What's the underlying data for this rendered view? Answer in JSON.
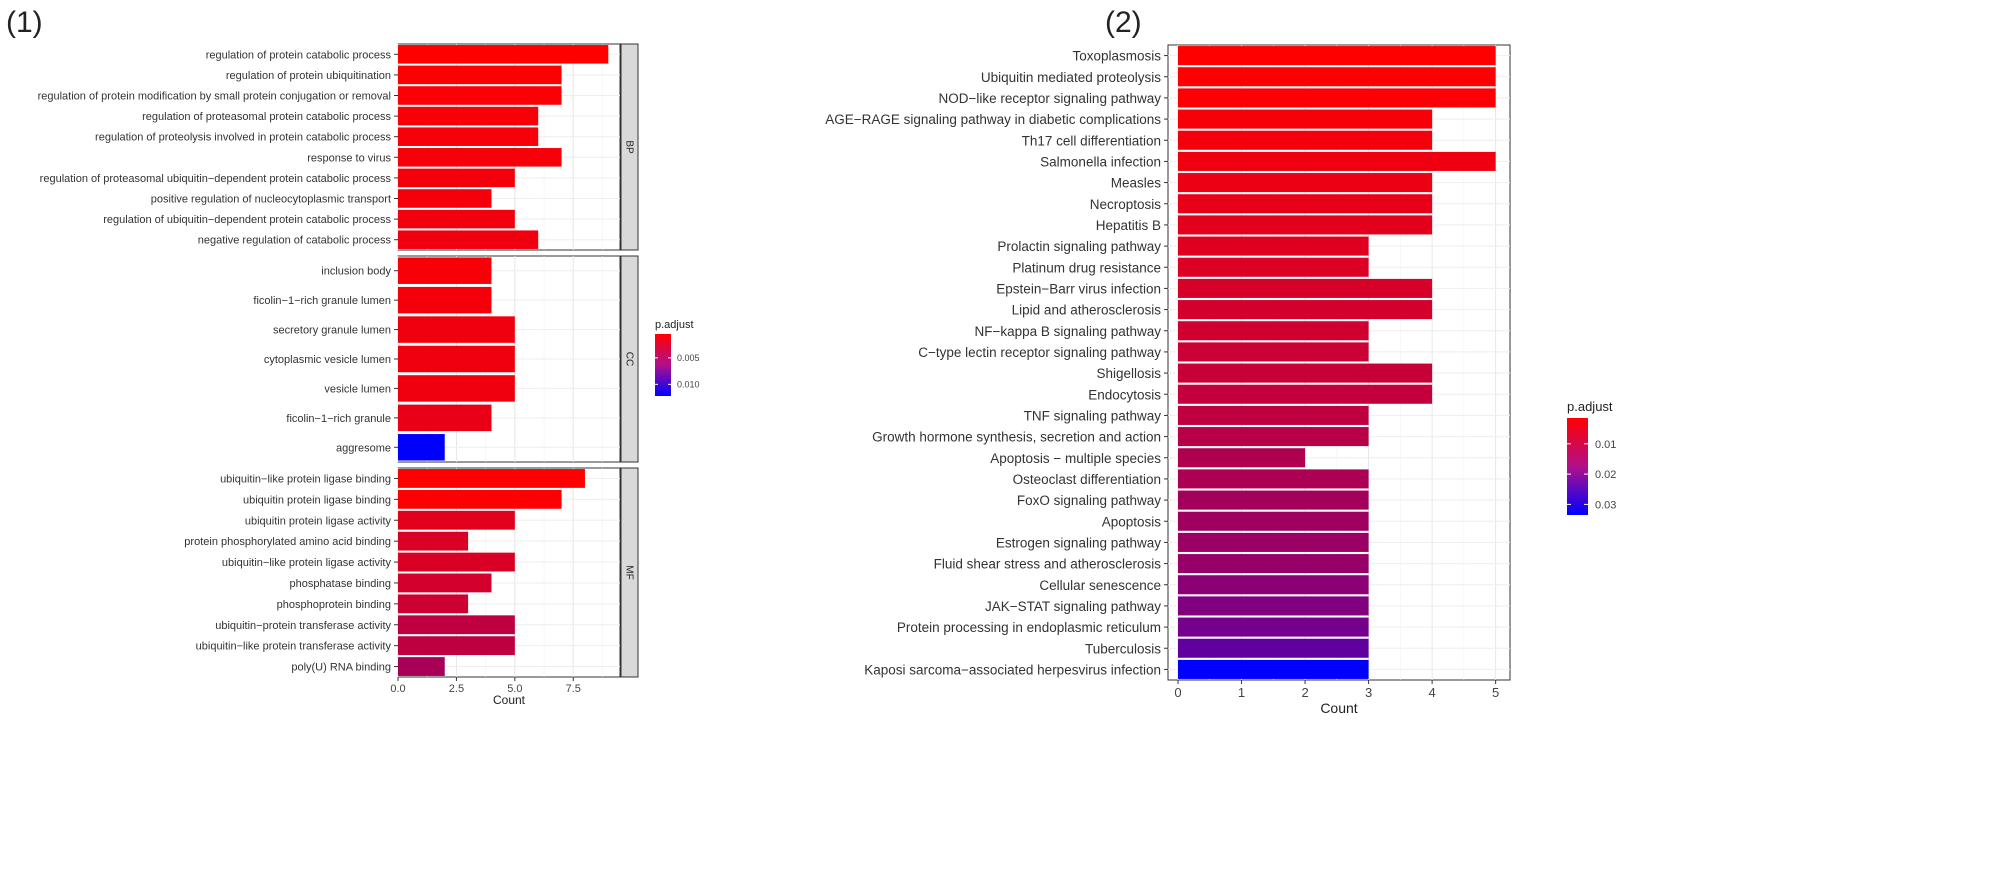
{
  "chart_data": [
    {
      "type": "bar",
      "orientation": "horizontal",
      "panel_label": "(1)",
      "xlabel": "Count",
      "xlim": [
        0,
        9.5
      ],
      "xticks": [
        0,
        2.5,
        5,
        7.5
      ],
      "xtick_labels": [
        "0.0",
        "2.5",
        "5.0",
        "7.5"
      ],
      "color_legend": {
        "title": "p.adjust",
        "ticks": [
          0.005,
          0.01
        ],
        "tick_labels": [
          "0.005",
          "0.010"
        ],
        "range": [
          0.0005,
          0.0122
        ],
        "low_color": "#ff0000",
        "high_color": "#0000ff"
      },
      "facets": [
        {
          "strip": "BP",
          "categories": [
            "regulation of protein catabolic process",
            "regulation of protein ubiquitination",
            "regulation of protein modification by small protein conjugation or removal",
            "regulation of proteasomal protein catabolic process",
            "regulation of proteolysis involved in protein catabolic process",
            "response to virus",
            "regulation of proteasomal ubiquitin−dependent protein catabolic process",
            "positive regulation of nucleocytoplasmic transport",
            "regulation of ubiquitin−dependent protein catabolic process",
            "negative regulation of catabolic process"
          ],
          "values": [
            9,
            7,
            7,
            6,
            6,
            7,
            5,
            4,
            5,
            6
          ],
          "p_adjust": [
            0.0005,
            0.0006,
            0.0007,
            0.0008,
            0.0009,
            0.0009,
            0.001,
            0.001,
            0.0011,
            0.0012
          ]
        },
        {
          "strip": "CC",
          "categories": [
            "inclusion body",
            "ficolin−1−rich granule lumen",
            "secretory granule lumen",
            "cytoplasmic vesicle lumen",
            "vesicle lumen",
            "ficolin−1−rich granule",
            "aggresome"
          ],
          "values": [
            4,
            4,
            5,
            5,
            5,
            4,
            2
          ],
          "p_adjust": [
            0.0008,
            0.001,
            0.0012,
            0.0012,
            0.0012,
            0.0015,
            0.0122
          ]
        },
        {
          "strip": "MF",
          "categories": [
            "ubiquitin−like protein ligase binding",
            "ubiquitin protein ligase binding",
            "ubiquitin protein ligase activity",
            "protein phosphorylated amino acid binding",
            "ubiquitin−like protein ligase activity",
            "phosphatase binding",
            "phosphoprotein binding",
            "ubiquitin−protein transferase activity",
            "ubiquitin−like protein transferase activity",
            "poly(U) RNA binding"
          ],
          "values": [
            8,
            7,
            5,
            3,
            5,
            4,
            3,
            5,
            5,
            2
          ],
          "p_adjust": [
            0.0005,
            0.0006,
            0.0018,
            0.0022,
            0.0022,
            0.0025,
            0.0028,
            0.0035,
            0.0035,
            0.0045
          ]
        }
      ]
    },
    {
      "type": "bar",
      "orientation": "horizontal",
      "panel_label": "(2)",
      "xlabel": "Count",
      "xlim": [
        0,
        5.1
      ],
      "xticks": [
        0,
        1,
        2,
        3,
        4,
        5
      ],
      "xtick_labels": [
        "0",
        "1",
        "2",
        "3",
        "4",
        "5"
      ],
      "color_legend": {
        "title": "p.adjust",
        "ticks": [
          0.01,
          0.02,
          0.03
        ],
        "tick_labels": [
          "0.01",
          "0.02",
          "0.03"
        ],
        "range": [
          0.0015,
          0.0335
        ],
        "low_color": "#ff0000",
        "high_color": "#0000ff"
      },
      "categories": [
        "Toxoplasmosis",
        "Ubiquitin mediated proteolysis",
        "NOD−like receptor signaling pathway",
        "AGE−RAGE signaling pathway in diabetic complications",
        "Th17 cell differentiation",
        "Salmonella infection",
        "Measles",
        "Necroptosis",
        "Hepatitis B",
        "Prolactin signaling pathway",
        "Platinum drug resistance",
        "Epstein−Barr virus infection",
        "Lipid and atherosclerosis",
        "NF−kappa B signaling pathway",
        "C−type lectin receptor signaling pathway",
        "Shigellosis",
        "Endocytosis",
        "TNF signaling pathway",
        "Growth hormone synthesis, secretion and action",
        "Apoptosis − multiple species",
        "Osteoclast differentiation",
        "FoxO signaling pathway",
        "Apoptosis",
        "Estrogen signaling pathway",
        "Fluid shear stress and atherosclerosis",
        "Cellular senescence",
        "JAK−STAT signaling pathway",
        "Protein processing in endoplasmic reticulum",
        "Tuberculosis",
        "Kaposi sarcoma−associated herpesvirus infection"
      ],
      "values": [
        5,
        5,
        5,
        4,
        4,
        5,
        4,
        4,
        4,
        3,
        3,
        4,
        4,
        3,
        3,
        4,
        4,
        3,
        3,
        2,
        3,
        3,
        3,
        3,
        3,
        3,
        3,
        3,
        3,
        3
      ],
      "p_adjust": [
        0.0015,
        0.0017,
        0.002,
        0.0025,
        0.003,
        0.0035,
        0.004,
        0.0045,
        0.005,
        0.0055,
        0.006,
        0.0065,
        0.007,
        0.0075,
        0.008,
        0.0085,
        0.009,
        0.0095,
        0.0105,
        0.0115,
        0.012,
        0.013,
        0.0135,
        0.014,
        0.0145,
        0.016,
        0.0175,
        0.019,
        0.0215,
        0.0335
      ]
    }
  ]
}
